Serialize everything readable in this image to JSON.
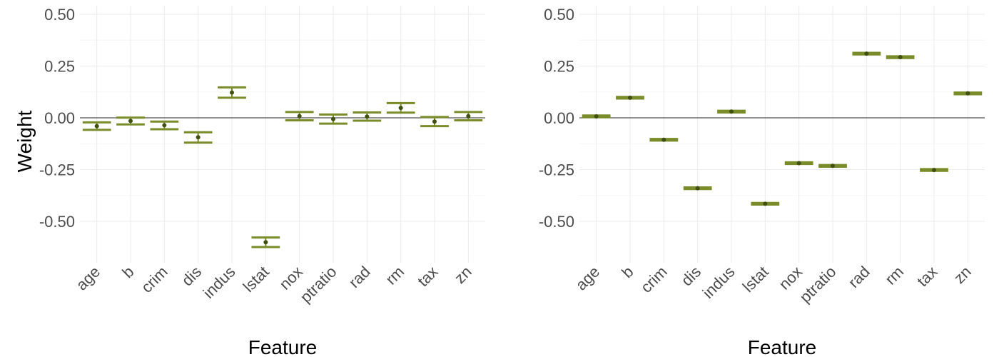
{
  "colors": {
    "bar": "#7a8c2a",
    "point": "#3f5010",
    "grid_major": "#ebebeb",
    "grid_minor": "#f5f5f5",
    "zero_line": "#4d4d4d"
  },
  "chart_data": [
    {
      "type": "errorbar",
      "xlabel": "Feature",
      "ylabel": "Weight",
      "ylim": [
        -0.62,
        0.5
      ],
      "yticks": [
        0.5,
        0.25,
        0.0,
        -0.25,
        -0.5
      ],
      "ytick_labels": [
        "0.50",
        "0.25",
        "0.00",
        "-0.25",
        "-0.50"
      ],
      "grid": true,
      "categories": [
        "age",
        "b",
        "crim",
        "dis",
        "indus",
        "lstat",
        "nox",
        "ptratio",
        "rad",
        "rm",
        "tax",
        "zn"
      ],
      "values": [
        -0.04,
        -0.015,
        -0.036,
        -0.094,
        0.122,
        -0.601,
        0.008,
        -0.006,
        0.006,
        0.048,
        -0.018,
        0.008
      ],
      "lower": [
        -0.058,
        -0.032,
        -0.055,
        -0.12,
        0.097,
        -0.624,
        -0.012,
        -0.028,
        -0.014,
        0.025,
        -0.04,
        -0.012
      ],
      "upper": [
        -0.022,
        0.001,
        -0.018,
        -0.07,
        0.147,
        -0.578,
        0.028,
        0.016,
        0.026,
        0.071,
        0.004,
        0.028
      ]
    },
    {
      "type": "errorbar",
      "xlabel": "Feature",
      "ylabel": "",
      "ylim": [
        -0.62,
        0.5
      ],
      "yticks": [
        0.5,
        0.25,
        0.0,
        -0.25,
        -0.5
      ],
      "ytick_labels": [
        "0.50",
        "0.25",
        "0.00",
        "-0.25",
        "-0.50"
      ],
      "grid": true,
      "categories": [
        "age",
        "b",
        "crim",
        "dis",
        "indus",
        "lstat",
        "nox",
        "ptratio",
        "rad",
        "rm",
        "tax",
        "zn"
      ],
      "values": [
        0.007,
        0.097,
        -0.106,
        -0.34,
        0.03,
        -0.415,
        -0.219,
        -0.232,
        0.31,
        0.293,
        -0.252,
        0.118
      ],
      "lower": [
        0.003,
        0.093,
        -0.11,
        -0.344,
        0.026,
        -0.419,
        -0.223,
        -0.236,
        0.306,
        0.289,
        -0.256,
        0.114
      ],
      "upper": [
        0.011,
        0.101,
        -0.102,
        -0.336,
        0.034,
        -0.411,
        -0.215,
        -0.228,
        0.314,
        0.297,
        -0.248,
        0.122
      ]
    }
  ]
}
